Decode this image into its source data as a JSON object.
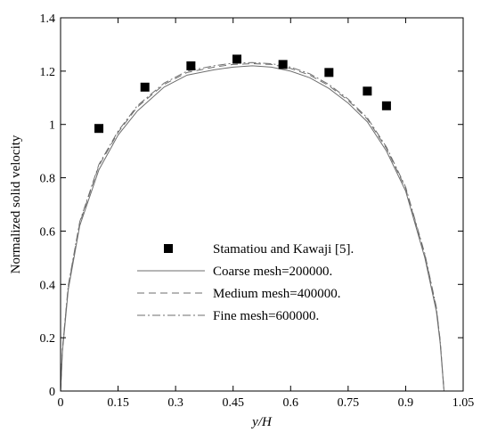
{
  "chart_data": {
    "type": "line",
    "title": "",
    "xlabel": "y/H",
    "ylabel": "Normalized solid velocity",
    "xlim": [
      0,
      1.05
    ],
    "ylim": [
      0,
      1.4
    ],
    "xticks": [
      "0",
      "0.15",
      "0.3",
      "0.45",
      "0.6",
      "0.75",
      "0.9",
      "1.05"
    ],
    "yticks": [
      "0",
      "0.2",
      "0.4",
      "0.6",
      "0.8",
      "1",
      "1.2",
      "1.4"
    ],
    "grid": false,
    "legend_position": "center",
    "series": [
      {
        "name": "Stamatiou and Kawaji [5].",
        "kind": "marker",
        "marker": "square",
        "color": "#000000",
        "x": [
          0.1,
          0.22,
          0.34,
          0.46,
          0.58,
          0.7,
          0.8,
          0.85
        ],
        "y": [
          0.985,
          1.14,
          1.22,
          1.245,
          1.225,
          1.195,
          1.125,
          1.07
        ]
      },
      {
        "name": "Coarse mesh=200000.",
        "kind": "line",
        "dash": "solid",
        "color": "#6e6e6e",
        "x": [
          0,
          0.005,
          0.02,
          0.05,
          0.1,
          0.15,
          0.2,
          0.27,
          0.33,
          0.4,
          0.45,
          0.5,
          0.55,
          0.6,
          0.65,
          0.7,
          0.75,
          0.8,
          0.85,
          0.9,
          0.95,
          0.98,
          0.99,
          1.0
        ],
        "y": [
          0,
          0.15,
          0.38,
          0.62,
          0.83,
          0.96,
          1.05,
          1.14,
          1.185,
          1.205,
          1.215,
          1.22,
          1.215,
          1.2,
          1.175,
          1.135,
          1.08,
          1.01,
          0.9,
          0.75,
          0.5,
          0.3,
          0.18,
          0
        ]
      },
      {
        "name": "Medium mesh=400000.",
        "kind": "line",
        "dash": "dashed",
        "color": "#6e6e6e",
        "x": [
          0,
          0.005,
          0.02,
          0.05,
          0.1,
          0.15,
          0.2,
          0.27,
          0.33,
          0.4,
          0.45,
          0.5,
          0.55,
          0.6,
          0.65,
          0.7,
          0.75,
          0.8,
          0.85,
          0.9,
          0.95,
          0.98,
          0.99,
          1.0
        ],
        "y": [
          0,
          0.16,
          0.39,
          0.63,
          0.845,
          0.97,
          1.065,
          1.15,
          1.195,
          1.215,
          1.225,
          1.228,
          1.225,
          1.21,
          1.185,
          1.145,
          1.09,
          1.02,
          0.91,
          0.76,
          0.51,
          0.31,
          0.19,
          0
        ]
      },
      {
        "name": "Fine mesh=600000.",
        "kind": "line",
        "dash": "dashdot",
        "color": "#6e6e6e",
        "x": [
          0,
          0.005,
          0.02,
          0.05,
          0.1,
          0.15,
          0.2,
          0.27,
          0.33,
          0.4,
          0.45,
          0.5,
          0.55,
          0.6,
          0.65,
          0.7,
          0.75,
          0.8,
          0.85,
          0.9,
          0.95,
          0.98,
          0.99,
          1.0
        ],
        "y": [
          0,
          0.16,
          0.395,
          0.635,
          0.85,
          0.975,
          1.07,
          1.155,
          1.2,
          1.22,
          1.23,
          1.232,
          1.228,
          1.215,
          1.19,
          1.15,
          1.095,
          1.025,
          0.915,
          0.765,
          0.515,
          0.315,
          0.19,
          0
        ]
      }
    ]
  }
}
